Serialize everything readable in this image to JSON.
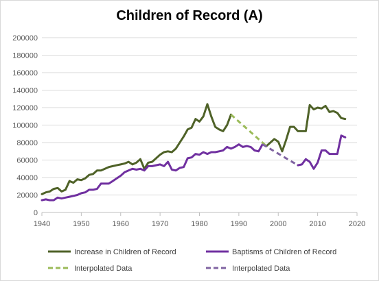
{
  "chart_data": {
    "type": "line",
    "title": "Children of Record (A)",
    "xlabel": "",
    "ylabel": "",
    "xlim": [
      1940,
      2020
    ],
    "ylim": [
      0,
      200000
    ],
    "x_ticks": [
      1940,
      1950,
      1960,
      1970,
      1980,
      1990,
      2000,
      2010,
      2020
    ],
    "y_ticks": [
      0,
      20000,
      40000,
      60000,
      80000,
      100000,
      120000,
      140000,
      160000,
      180000,
      200000
    ],
    "grid": "horizontal",
    "legend_position": "bottom",
    "series": [
      {
        "name": "Increase in Children of Record",
        "color": "#4f6228",
        "style": "solid",
        "x": [
          1940,
          1941,
          1942,
          1943,
          1944,
          1945,
          1946,
          1947,
          1948,
          1949,
          1950,
          1951,
          1952,
          1953,
          1954,
          1955,
          1956,
          1957,
          1958,
          1959,
          1960,
          1961,
          1962,
          1963,
          1964,
          1965,
          1966,
          1967,
          1968,
          1969,
          1970,
          1971,
          1972,
          1973,
          1974,
          1975,
          1976,
          1977,
          1978,
          1979,
          1980,
          1981,
          1982,
          1983,
          1984,
          1985,
          1986,
          1987,
          1988
        ],
        "y": [
          21000,
          23000,
          24000,
          27000,
          28000,
          24000,
          26000,
          36000,
          34000,
          38000,
          37000,
          39000,
          43000,
          44000,
          48000,
          48000,
          50000,
          52000,
          53000,
          54000,
          55000,
          56000,
          58000,
          55000,
          57000,
          61000,
          50000,
          57000,
          58000,
          62000,
          66000,
          69000,
          70000,
          69000,
          73000,
          80000,
          87000,
          95000,
          97000,
          107000,
          104000,
          110000,
          124000,
          110000,
          98000,
          95000,
          93000,
          100000,
          112000
        ]
      },
      {
        "name": "Increase in Children of Record",
        "color": "#4f6228",
        "style": "solid",
        "x": [
          1997,
          1998,
          1999,
          2000,
          2001,
          2002,
          2003,
          2004,
          2005,
          2006,
          2007,
          2008,
          2009,
          2010,
          2011,
          2012,
          2013,
          2014,
          2015,
          2016,
          2017
        ],
        "y": [
          76000,
          80000,
          84000,
          81000,
          70000,
          83000,
          98000,
          98000,
          93000,
          93000,
          93000,
          123000,
          118000,
          120000,
          119000,
          122000,
          115000,
          116000,
          114000,
          108000,
          107000
        ]
      },
      {
        "name": "Baptisms of Children of Record",
        "color": "#7030a0",
        "style": "solid",
        "x": [
          1940,
          1941,
          1942,
          1943,
          1944,
          1945,
          1946,
          1947,
          1948,
          1949,
          1950,
          1951,
          1952,
          1953,
          1954,
          1955,
          1956,
          1957,
          1958,
          1959,
          1960,
          1961,
          1962,
          1963,
          1964,
          1965,
          1966,
          1967,
          1968,
          1969,
          1970,
          1971,
          1972,
          1973,
          1974,
          1975,
          1976,
          1977,
          1978,
          1979,
          1980,
          1981,
          1982,
          1983,
          1984,
          1985,
          1986,
          1987,
          1988,
          1989,
          1990,
          1991,
          1992,
          1993,
          1994,
          1995,
          1996
        ],
        "y": [
          14000,
          15000,
          14000,
          14000,
          17000,
          16000,
          17000,
          18000,
          19000,
          20000,
          22000,
          23000,
          26000,
          26000,
          27000,
          33000,
          33000,
          33000,
          36000,
          39000,
          42000,
          46000,
          48000,
          50000,
          49000,
          50000,
          48000,
          53000,
          53000,
          54000,
          55000,
          53000,
          58000,
          49000,
          48000,
          51000,
          52000,
          62000,
          63000,
          67000,
          66000,
          69000,
          67000,
          69000,
          69000,
          70000,
          71000,
          75000,
          73000,
          75000,
          78000,
          75000,
          76000,
          75000,
          71000,
          70000,
          78000
        ]
      },
      {
        "name": "Baptisms of Children of Record",
        "color": "#7030a0",
        "style": "solid",
        "x": [
          2005,
          2006,
          2007,
          2008,
          2009,
          2010,
          2011,
          2012,
          2013,
          2014,
          2015,
          2016,
          2017
        ],
        "y": [
          54000,
          55000,
          61000,
          58000,
          50000,
          57000,
          71000,
          71000,
          67000,
          67000,
          67000,
          88000,
          86000
        ]
      },
      {
        "name": "Interpolated Data",
        "color": "#9bbb59",
        "style": "dashed",
        "x": [
          1988,
          1997
        ],
        "y": [
          112000,
          76000
        ]
      },
      {
        "name": "Interpolated Data",
        "color": "#8064a2",
        "style": "dashed",
        "x": [
          1996,
          2005
        ],
        "y": [
          78000,
          54000
        ]
      }
    ],
    "legend": [
      {
        "label": "Increase in Children of Record",
        "color": "#4f6228",
        "style": "solid"
      },
      {
        "label": "Baptisms of Children of Record",
        "color": "#7030a0",
        "style": "solid"
      },
      {
        "label": "Interpolated Data",
        "color": "#9bbb59",
        "style": "dashed"
      },
      {
        "label": "Interpolated Data",
        "color": "#8064a2",
        "style": "dashed"
      }
    ]
  }
}
